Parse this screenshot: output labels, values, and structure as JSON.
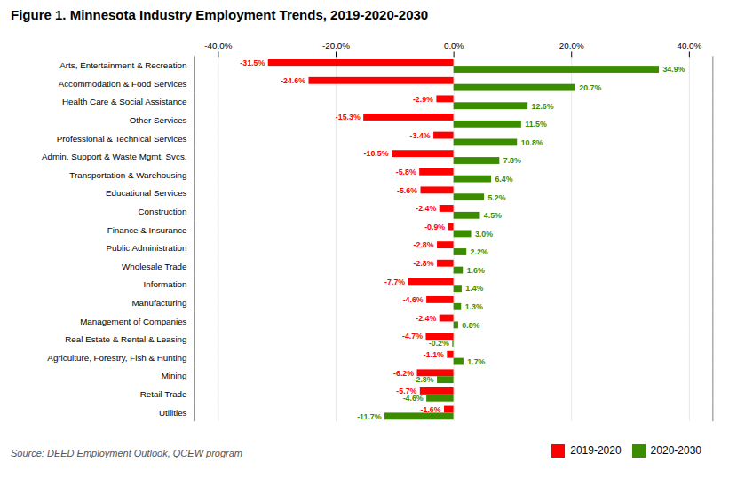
{
  "chart_data": {
    "type": "bar",
    "orientation": "horizontal",
    "title": "Figure 1. Minnesota Industry Employment Trends, 2019-2020-2030",
    "annotations": [
      "Source: DEED Employment Outlook, QCEW program"
    ],
    "categories": [
      "Arts, Entertainment & Recreation",
      "Accommodation & Food Services",
      "Health Care & Social Assistance",
      "Other Services",
      "Professional & Technical Services",
      "Admin. Support & Waste Mgmt. Svcs.",
      "Transportation & Warehousing",
      "Educational Services",
      "Construction",
      "Finance & Insurance",
      "Public Administration",
      "Wholesale Trade",
      "Information",
      "Manufacturing",
      "Management of Companies",
      "Real Estate & Rental & Leasing",
      "Agriculture, Forestry, Fish & Hunting",
      "Mining",
      "Retail Trade",
      "Utilities"
    ],
    "series": [
      {
        "name": "2019-2020",
        "color": "#FF0000",
        "values": [
          -31.5,
          -24.6,
          -2.9,
          -15.3,
          -3.4,
          -10.5,
          -5.8,
          -5.6,
          -2.4,
          -0.9,
          -2.8,
          -2.8,
          -7.7,
          -4.6,
          -2.4,
          -4.7,
          -1.1,
          -6.2,
          -5.7,
          -1.6
        ],
        "value_labels": [
          "-31.5%",
          "-24.6%",
          "-2.9%",
          "-15.3%",
          "-3.4%",
          "-10.5%",
          "-5.8%",
          "-5.6%",
          "-2.4%",
          "-0.9%",
          "-2.8%",
          "-2.8%",
          "-7.7%",
          "-4.6%",
          "-2.4%",
          "-4.7%",
          "-1.1%",
          "-6.2%",
          "-5.7%",
          "-1.6%"
        ]
      },
      {
        "name": "2020-2030",
        "color": "#3C8C00",
        "values": [
          34.9,
          20.7,
          12.6,
          11.5,
          10.8,
          7.8,
          6.4,
          5.2,
          4.5,
          3.0,
          2.2,
          1.6,
          1.4,
          1.3,
          0.8,
          -0.2,
          1.7,
          -2.8,
          -4.6,
          -11.7
        ],
        "value_labels": [
          "34.9%",
          "20.7%",
          "12.6%",
          "11.5%",
          "10.8%",
          "7.8%",
          "6.4%",
          "5.2%",
          "4.5%",
          "3.0%",
          "2.2%",
          "1.6%",
          "1.4%",
          "1.3%",
          "0.8%",
          "-0.2%",
          "1.7%",
          "-2.8%",
          "-4.6%",
          "-11.7%"
        ]
      }
    ],
    "xlim": [
      -44,
      44
    ],
    "xticks": [
      {
        "value": -40,
        "label": "-40.0%"
      },
      {
        "value": -20,
        "label": "-20.0%"
      },
      {
        "value": 0,
        "label": "0.0%"
      },
      {
        "value": 20,
        "label": "20.0%"
      },
      {
        "value": 40,
        "label": "40.0%"
      }
    ],
    "grid": true,
    "legend": "lower right",
    "data_labels": true
  }
}
